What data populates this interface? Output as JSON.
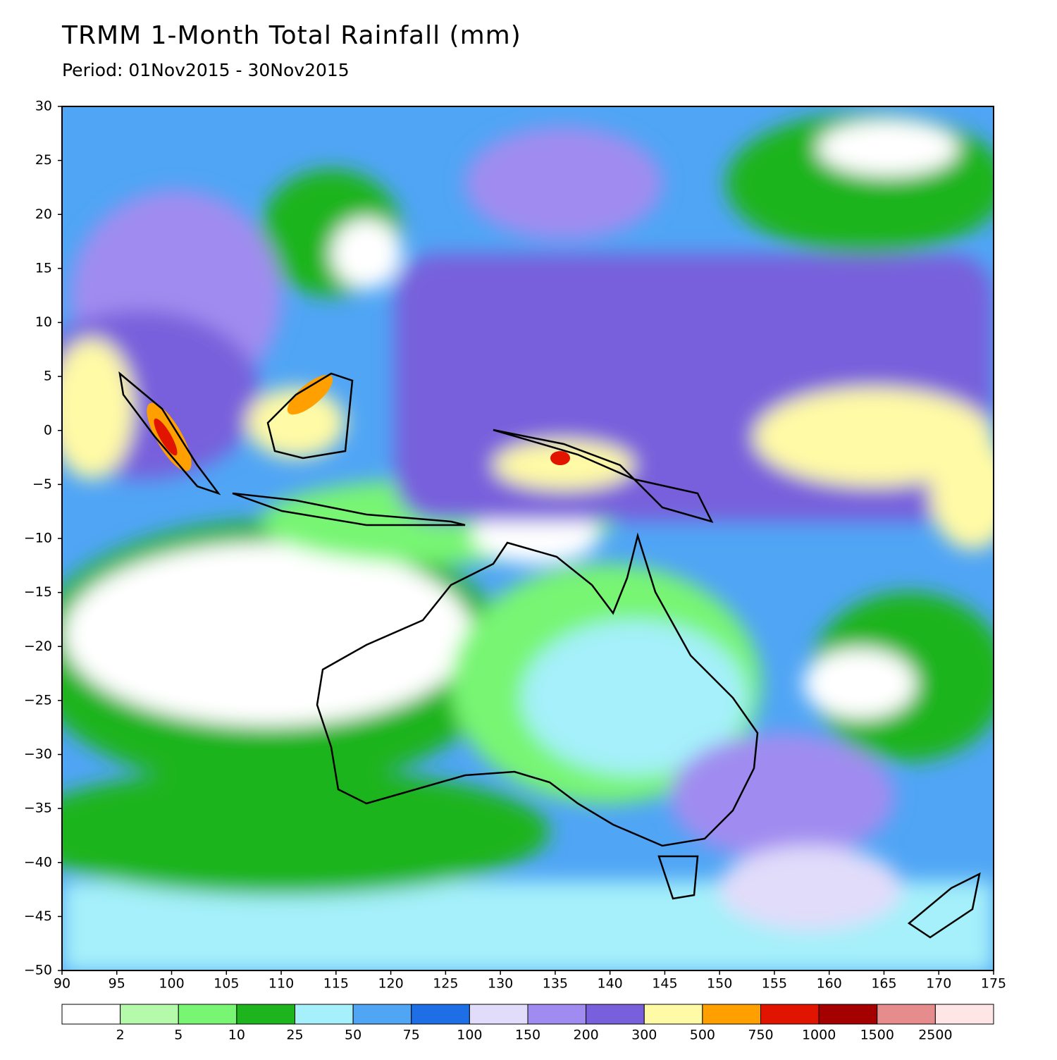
{
  "title": "TRMM 1-Month Total Rainfall (mm)",
  "subtitle": "Period: 01Nov2015 - 30Nov2015",
  "map": {
    "xlim": [
      90,
      175
    ],
    "ylim": [
      -50,
      30
    ],
    "xticks": [
      90,
      95,
      100,
      105,
      110,
      115,
      120,
      125,
      130,
      135,
      140,
      145,
      150,
      155,
      160,
      165,
      170,
      175
    ],
    "yticks": [
      {
        "value": -50,
        "label": "−50"
      },
      {
        "value": -45,
        "label": "−45"
      },
      {
        "value": -40,
        "label": "−40"
      },
      {
        "value": -35,
        "label": "−35"
      },
      {
        "value": -30,
        "label": "−30"
      },
      {
        "value": -25,
        "label": "−25"
      },
      {
        "value": -20,
        "label": "−20"
      },
      {
        "value": -15,
        "label": "−15"
      },
      {
        "value": -10,
        "label": "−10"
      },
      {
        "value": -5,
        "label": "−5"
      },
      0,
      5,
      10,
      15,
      20,
      25,
      30
    ]
  },
  "colorbar": {
    "levels": [
      2,
      5,
      10,
      25,
      50,
      75,
      100,
      150,
      200,
      300,
      500,
      750,
      1000,
      1500,
      2500
    ],
    "colors": [
      "#ffffff",
      "#b4faaa",
      "#78f573",
      "#1eb41e",
      "#a5f0fa",
      "#50a5f5",
      "#1e6ee6",
      "#e1dcfa",
      "#a08cf0",
      "#7860dc",
      "#fffaa5",
      "#ffa000",
      "#e11400",
      "#a50000",
      "#e68c8c",
      "#ffe6e6"
    ]
  }
}
